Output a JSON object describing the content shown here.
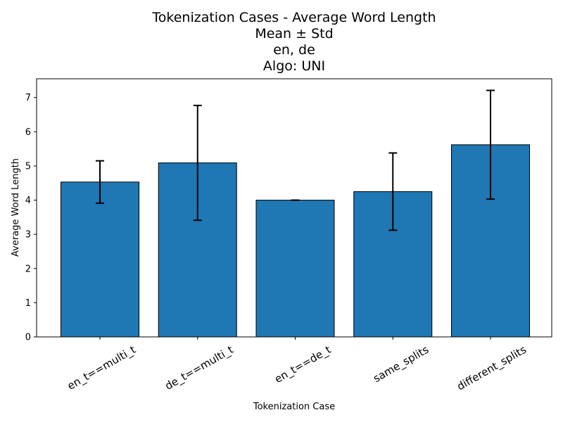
{
  "chart_data": {
    "type": "bar",
    "title_lines": [
      "Tokenization Cases - Average Word Length",
      "Mean ± Std",
      "en, de",
      "Algo: UNI"
    ],
    "xlabel": "Tokenization Case",
    "ylabel": "Average Word Length",
    "categories": [
      "en_t==multi_t",
      "de_t==multi_t",
      "en_t==de_t",
      "same_splits",
      "different_splits"
    ],
    "values": [
      4.53,
      5.09,
      4.0,
      4.25,
      5.62
    ],
    "errors": [
      0.62,
      1.68,
      0.0,
      1.13,
      1.59
    ],
    "ylim": [
      0,
      7.55
    ],
    "yticks": [
      0,
      1,
      2,
      3,
      4,
      5,
      6,
      7
    ],
    "bar_color": "#1f77b4",
    "edge_color": "#000000",
    "grid": false,
    "legend": "none"
  }
}
